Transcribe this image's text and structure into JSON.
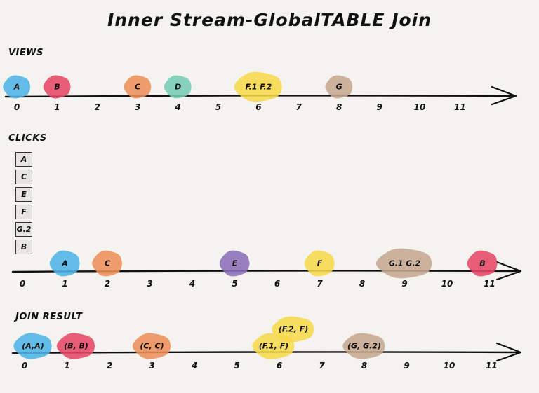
{
  "title": "Inner Stream-GlobalTABLE Join",
  "colors": {
    "blue": "#4fb3e6",
    "red": "#e54865",
    "orange": "#ee8f5a",
    "teal": "#77cdb5",
    "yellow": "#f6d84a",
    "tan": "#c6a790",
    "purple": "#8c6db8",
    "axis": "#111111"
  },
  "views": {
    "label": "VIEWS",
    "ticks": [
      "0",
      "1",
      "2",
      "3",
      "4",
      "5",
      "6",
      "7",
      "8",
      "9",
      "10",
      "11"
    ],
    "events": [
      {
        "label": "A",
        "color": "blue",
        "t": 0
      },
      {
        "label": "B",
        "color": "red",
        "t": 1
      },
      {
        "label": "C",
        "color": "orange",
        "t": 3
      },
      {
        "label": "D",
        "color": "teal",
        "t": 4
      },
      {
        "label": "F.1  F.2",
        "color": "yellow",
        "t": 6
      },
      {
        "label": "G",
        "color": "tan",
        "t": 8
      }
    ]
  },
  "clicks": {
    "label": "CLICKS",
    "table": [
      "A",
      "C",
      "E",
      "F",
      "G.2",
      "B"
    ],
    "ticks": [
      "0",
      "1",
      "2",
      "3",
      "4",
      "5",
      "6",
      "7",
      "8",
      "9",
      "10",
      "11"
    ],
    "events": [
      {
        "label": "A",
        "color": "blue",
        "t": 1
      },
      {
        "label": "C",
        "color": "orange",
        "t": 2
      },
      {
        "label": "E",
        "color": "purple",
        "t": 5
      },
      {
        "label": "F",
        "color": "yellow",
        "t": 7
      },
      {
        "label": "G.1  G.2",
        "color": "tan",
        "t": 9
      },
      {
        "label": "B",
        "color": "red",
        "t": 11
      }
    ]
  },
  "join": {
    "label": "JOIN RESULT",
    "ticks": [
      "0",
      "1",
      "2",
      "3",
      "4",
      "5",
      "6",
      "7",
      "8",
      "9",
      "10",
      "11"
    ],
    "events": [
      {
        "label": "(A,A)",
        "color": "blue",
        "t": 0
      },
      {
        "label": "(B, B)",
        "color": "red",
        "t": 1
      },
      {
        "label": "(C, C)",
        "color": "orange",
        "t": 3
      },
      {
        "label": "(F.1, F)",
        "color": "yellow",
        "t": 6
      },
      {
        "label": "(F.2, F)",
        "color": "yellow",
        "t": 6
      },
      {
        "label": "(G, G.2)",
        "color": "tan",
        "t": 8
      }
    ]
  }
}
